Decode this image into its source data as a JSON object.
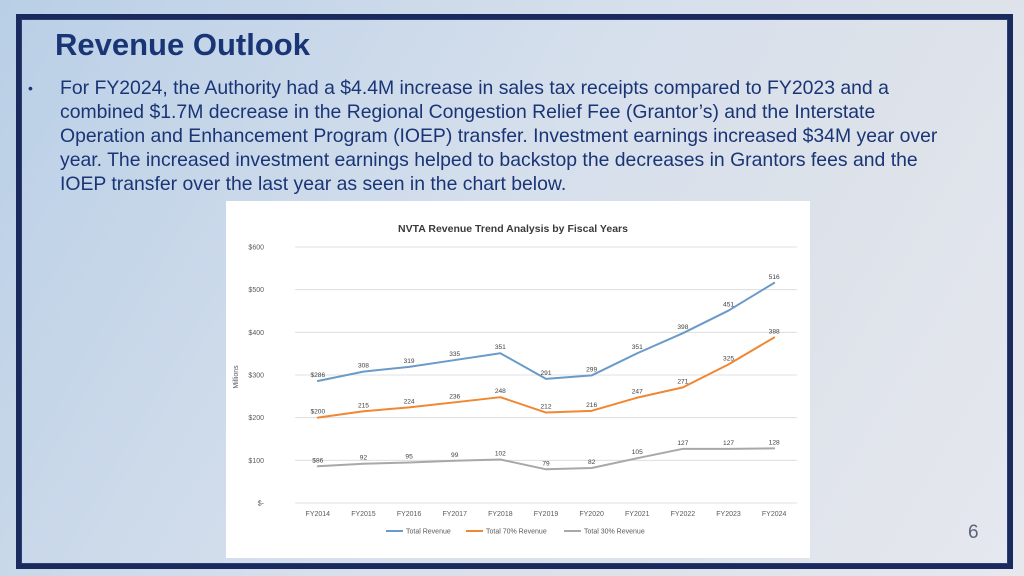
{
  "slide": {
    "title": "Revenue Outlook",
    "bullet_marker": "•",
    "bullet_text": "For FY2024, the Authority had a $4.4M increase in sales tax receipts compared to FY2023 and a combined $1.7M decrease in the Regional Congestion Relief Fee (Grantor’s) and the Interstate Operation and Enhancement Program (IOEP) transfer.  Investment earnings increased $34M year over year. The increased investment earnings helped to backstop the decreases in Grantors fees and the IOEP transfer over the last year as seen in the chart below.",
    "page_number": "6"
  },
  "colors": {
    "title": "#1a3576",
    "frame": "#1b2a5c"
  },
  "chart_data": {
    "type": "line",
    "title": "NVTA Revenue Trend Analysis by Fiscal Years",
    "xlabel": "",
    "ylabel": "Millions",
    "ylim": [
      0,
      600
    ],
    "y_ticks": [
      0,
      100,
      200,
      300,
      400,
      500,
      600
    ],
    "y_tick_labels": [
      "$-",
      "$100",
      "$200",
      "$300",
      "$400",
      "$500",
      "$600"
    ],
    "categories": [
      "FY2014",
      "FY2015",
      "FY2016",
      "FY2017",
      "FY2018",
      "FY2019",
      "FY2020",
      "FY2021",
      "FY2022",
      "FY2023",
      "FY2024"
    ],
    "grid": true,
    "legend_position": "bottom",
    "series": [
      {
        "name": "Total Revenue",
        "color": "#6a9bc8",
        "values": [
          286,
          308,
          319,
          335,
          351,
          291,
          299,
          351,
          398,
          451,
          516
        ],
        "labels": [
          "$286",
          "308",
          "319",
          "335",
          "351",
          "291",
          "299",
          "351",
          "398",
          "451",
          "516"
        ]
      },
      {
        "name": "Total 70% Revenue",
        "color": "#ef8733",
        "values": [
          200,
          215,
          224,
          236,
          248,
          212,
          216,
          247,
          271,
          325,
          388
        ],
        "labels": [
          "$200",
          "215",
          "224",
          "236",
          "248",
          "212",
          "216",
          "247",
          "271",
          "325",
          "388"
        ]
      },
      {
        "name": "Total 30% Revenue",
        "color": "#a8a8a8",
        "values": [
          86,
          92,
          95,
          99,
          102,
          79,
          82,
          105,
          127,
          127,
          128
        ],
        "labels": [
          "$86",
          "92",
          "95",
          "99",
          "102",
          "79",
          "82",
          "105",
          "127",
          "127",
          "128"
        ]
      }
    ]
  }
}
